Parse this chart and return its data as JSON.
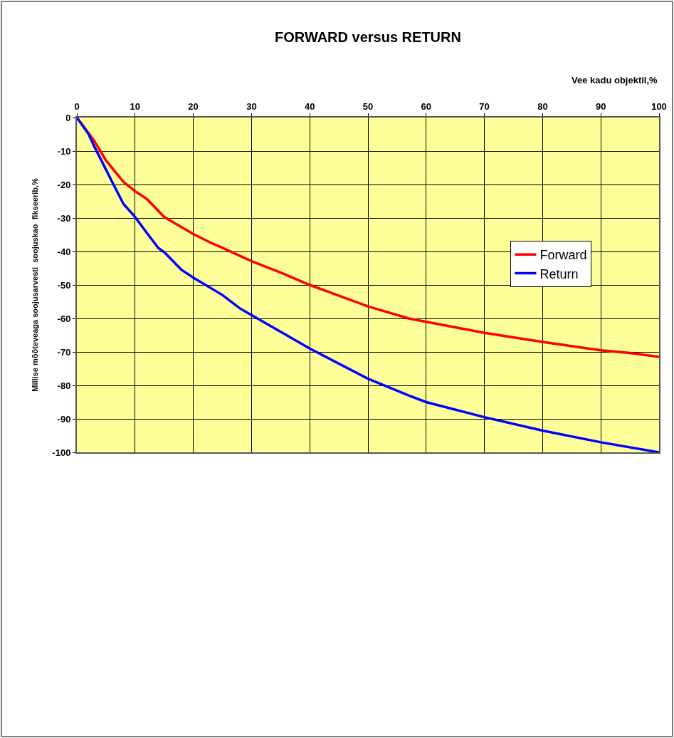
{
  "chart_data": {
    "type": "line",
    "title": "FORWARD versus RETURN",
    "xlabel": "Vee kadu objektil,%",
    "ylabel": "Millise mõõteveaga soojusarvesti  soojuskao  fikseerib,%",
    "xlim": [
      0,
      100
    ],
    "xticks": [
      0,
      10,
      20,
      30,
      40,
      50,
      60,
      70,
      80,
      90,
      100
    ],
    "ylim": [
      -100,
      0
    ],
    "yticks": [
      0,
      -10,
      -20,
      -30,
      -40,
      -50,
      -60,
      -70,
      -80,
      -90,
      -100
    ],
    "grid": true,
    "legend": "right",
    "marker": "none",
    "line_style": "solid",
    "series": [
      {
        "name": "Forward",
        "color": "#ff0000",
        "x": [
          0,
          3,
          5,
          8,
          10,
          12,
          15,
          20,
          23,
          25,
          30,
          35,
          40,
          50,
          57,
          60,
          70,
          80,
          90,
          95,
          100
        ],
        "values": [
          0,
          -7,
          -12.8,
          -19.2,
          -22,
          -24.3,
          -29.7,
          -34.8,
          -37.4,
          -38.9,
          -42.9,
          -46.3,
          -50,
          -56.4,
          -60,
          -61,
          -64.3,
          -67,
          -69.5,
          -70.3,
          -71.5
        ]
      },
      {
        "name": "Return",
        "color": "#0000ff",
        "x": [
          0,
          2,
          3,
          4,
          6,
          8,
          10,
          12,
          14,
          15,
          18,
          20,
          25,
          28,
          30,
          40,
          50,
          57,
          60,
          70,
          80,
          90,
          100
        ],
        "values": [
          0,
          -4.9,
          -8.7,
          -12.1,
          -19,
          -25.8,
          -29.7,
          -34.4,
          -39,
          -40.2,
          -45.5,
          -47.8,
          -53,
          -57,
          -59,
          -69,
          -78,
          -83,
          -85,
          -89.5,
          -93.5,
          -97,
          -100
        ]
      }
    ]
  }
}
